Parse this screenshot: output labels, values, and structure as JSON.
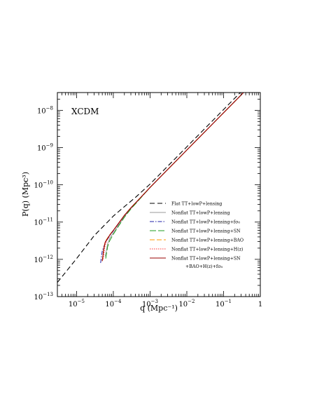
{
  "chart_data": {
    "type": "line",
    "title": "",
    "panel_label": "XCDM",
    "xlabel": "q (Mpc⁻¹)",
    "ylabel": "P(q) (Mpc³)",
    "x_scale": "log",
    "y_scale": "log",
    "xlim": [
      3e-06,
      1
    ],
    "ylim": [
      1e-13,
      3e-08
    ],
    "x_ticks": [
      {
        "value": 1e-05,
        "base": "10",
        "exp": "−5"
      },
      {
        "value": 0.0001,
        "base": "10",
        "exp": "−4"
      },
      {
        "value": 0.001,
        "base": "10",
        "exp": "−3"
      },
      {
        "value": 0.01,
        "base": "10",
        "exp": "−2"
      },
      {
        "value": 0.1,
        "base": "10",
        "exp": "−1"
      },
      {
        "value": 1,
        "base": "1",
        "exp": ""
      }
    ],
    "y_ticks": [
      {
        "value": 1e-13,
        "base": "10",
        "exp": "−13"
      },
      {
        "value": 1e-12,
        "base": "10",
        "exp": "−12"
      },
      {
        "value": 1e-11,
        "base": "10",
        "exp": "−11"
      },
      {
        "value": 1e-10,
        "base": "10",
        "exp": "−10"
      },
      {
        "value": 1e-09,
        "base": "10",
        "exp": "−9"
      },
      {
        "value": 1e-08,
        "base": "10",
        "exp": "−8"
      }
    ],
    "grid": false,
    "legend_position": "bottom-right",
    "legend_extra_line": "+BAO+H(z)+fσ₈",
    "series": [
      {
        "name": "Flat TT+lowP+lensing",
        "color": "#000000",
        "dash": "7,4",
        "width": 1.1,
        "x": [
          3e-06,
          1e-05,
          3e-05,
          0.0001,
          0.0002,
          0.0004,
          0.001,
          0.01,
          0.1,
          1
        ],
        "y": [
          2.4e-13,
          1.05e-12,
          4.3e-12,
          1.45e-11,
          2.6e-11,
          4.6e-11,
          1.05e-10,
          1.05e-09,
          1.05e-08,
          1.05e-07
        ]
      },
      {
        "name": "Nonflat TT+lowP+lensing",
        "color": "#999999",
        "dash": "",
        "width": 1.0,
        "x": [
          6e-05,
          7e-05,
          8e-05,
          0.0001,
          0.00013,
          0.0002,
          0.0003,
          0.0005,
          0.001,
          0.01,
          0.1,
          1
        ],
        "y": [
          1.2e-12,
          2.6e-12,
          3.7e-12,
          5.1e-12,
          7.5e-12,
          1.4e-11,
          2.3e-11,
          4e-11,
          8.5e-11,
          8.6e-10,
          8.6e-09,
          8.6e-08
        ]
      },
      {
        "name": "Nonflat TT+lowP+lensing+fσ₈",
        "color": "#2222aa",
        "dash": "6,2,1.5,2",
        "width": 1.0,
        "x": [
          4.5e-05,
          5e-05,
          6e-05,
          8e-05,
          0.0001,
          0.00013,
          0.0002,
          0.0003,
          0.0005,
          0.001,
          0.01,
          0.1,
          1
        ],
        "y": [
          8e-13,
          1.7e-12,
          2.8e-12,
          4.3e-12,
          5.8e-12,
          8.3e-12,
          1.5e-11,
          2.4e-11,
          4.1e-11,
          8.5e-11,
          8.6e-10,
          8.6e-09,
          8.6e-08
        ]
      },
      {
        "name": "Nonflat TT+lowP+lensing+SN",
        "color": "#1f9e1f",
        "dash": "9,3",
        "width": 1.0,
        "x": [
          6.2e-05,
          7e-05,
          8e-05,
          0.0001,
          0.00013,
          0.0002,
          0.0003,
          0.0005,
          0.001,
          0.01,
          0.1,
          1
        ],
        "y": [
          1.05e-12,
          2.2e-12,
          3.2e-12,
          4.7e-12,
          7.1e-12,
          1.35e-11,
          2.25e-11,
          3.95e-11,
          8.5e-11,
          8.6e-10,
          8.6e-09,
          8.6e-08
        ]
      },
      {
        "name": "Nonflat TT+lowP+lensing+BAO",
        "color": "#ff9900",
        "dash": "7,3",
        "width": 1.0,
        "x": [
          5e-05,
          5.5e-05,
          6e-05,
          8e-05,
          0.0001,
          0.00013,
          0.0002,
          0.0003,
          0.0005,
          0.001,
          0.01,
          0.1,
          1
        ],
        "y": [
          9e-13,
          2e-12,
          3e-12,
          4.6e-12,
          6e-12,
          8.5e-12,
          1.52e-11,
          2.42e-11,
          4.12e-11,
          8.55e-11,
          8.6e-10,
          8.6e-09,
          8.6e-08
        ]
      },
      {
        "name": "Nonflat TT+lowP+lensing+H(z)",
        "color": "#ff3333",
        "dash": "1.5,1.5",
        "width": 1.0,
        "x": [
          5.3e-05,
          5.8e-05,
          6.5e-05,
          8e-05,
          0.0001,
          0.00013,
          0.0002,
          0.0003,
          0.0005,
          0.001,
          0.01,
          0.1,
          1
        ],
        "y": [
          1e-12,
          2.1e-12,
          3.1e-12,
          4.5e-12,
          5.9e-12,
          8.4e-12,
          1.51e-11,
          2.41e-11,
          4.11e-11,
          8.55e-11,
          8.6e-10,
          8.6e-09,
          8.6e-08
        ]
      },
      {
        "name": "Nonflat TT+lowP+lensing+SN",
        "color": "#990000",
        "dash": "",
        "width": 1.1,
        "x": [
          5e-05,
          5.5e-05,
          6e-05,
          8e-05,
          0.0001,
          0.00013,
          0.0002,
          0.0003,
          0.0005,
          0.001,
          0.01,
          0.1,
          1
        ],
        "y": [
          9e-13,
          1.9e-12,
          2.9e-12,
          4.5e-12,
          6e-12,
          8.5e-12,
          1.52e-11,
          2.42e-11,
          4.12e-11,
          8.55e-11,
          8.6e-10,
          8.6e-09,
          8.6e-08
        ]
      }
    ]
  }
}
